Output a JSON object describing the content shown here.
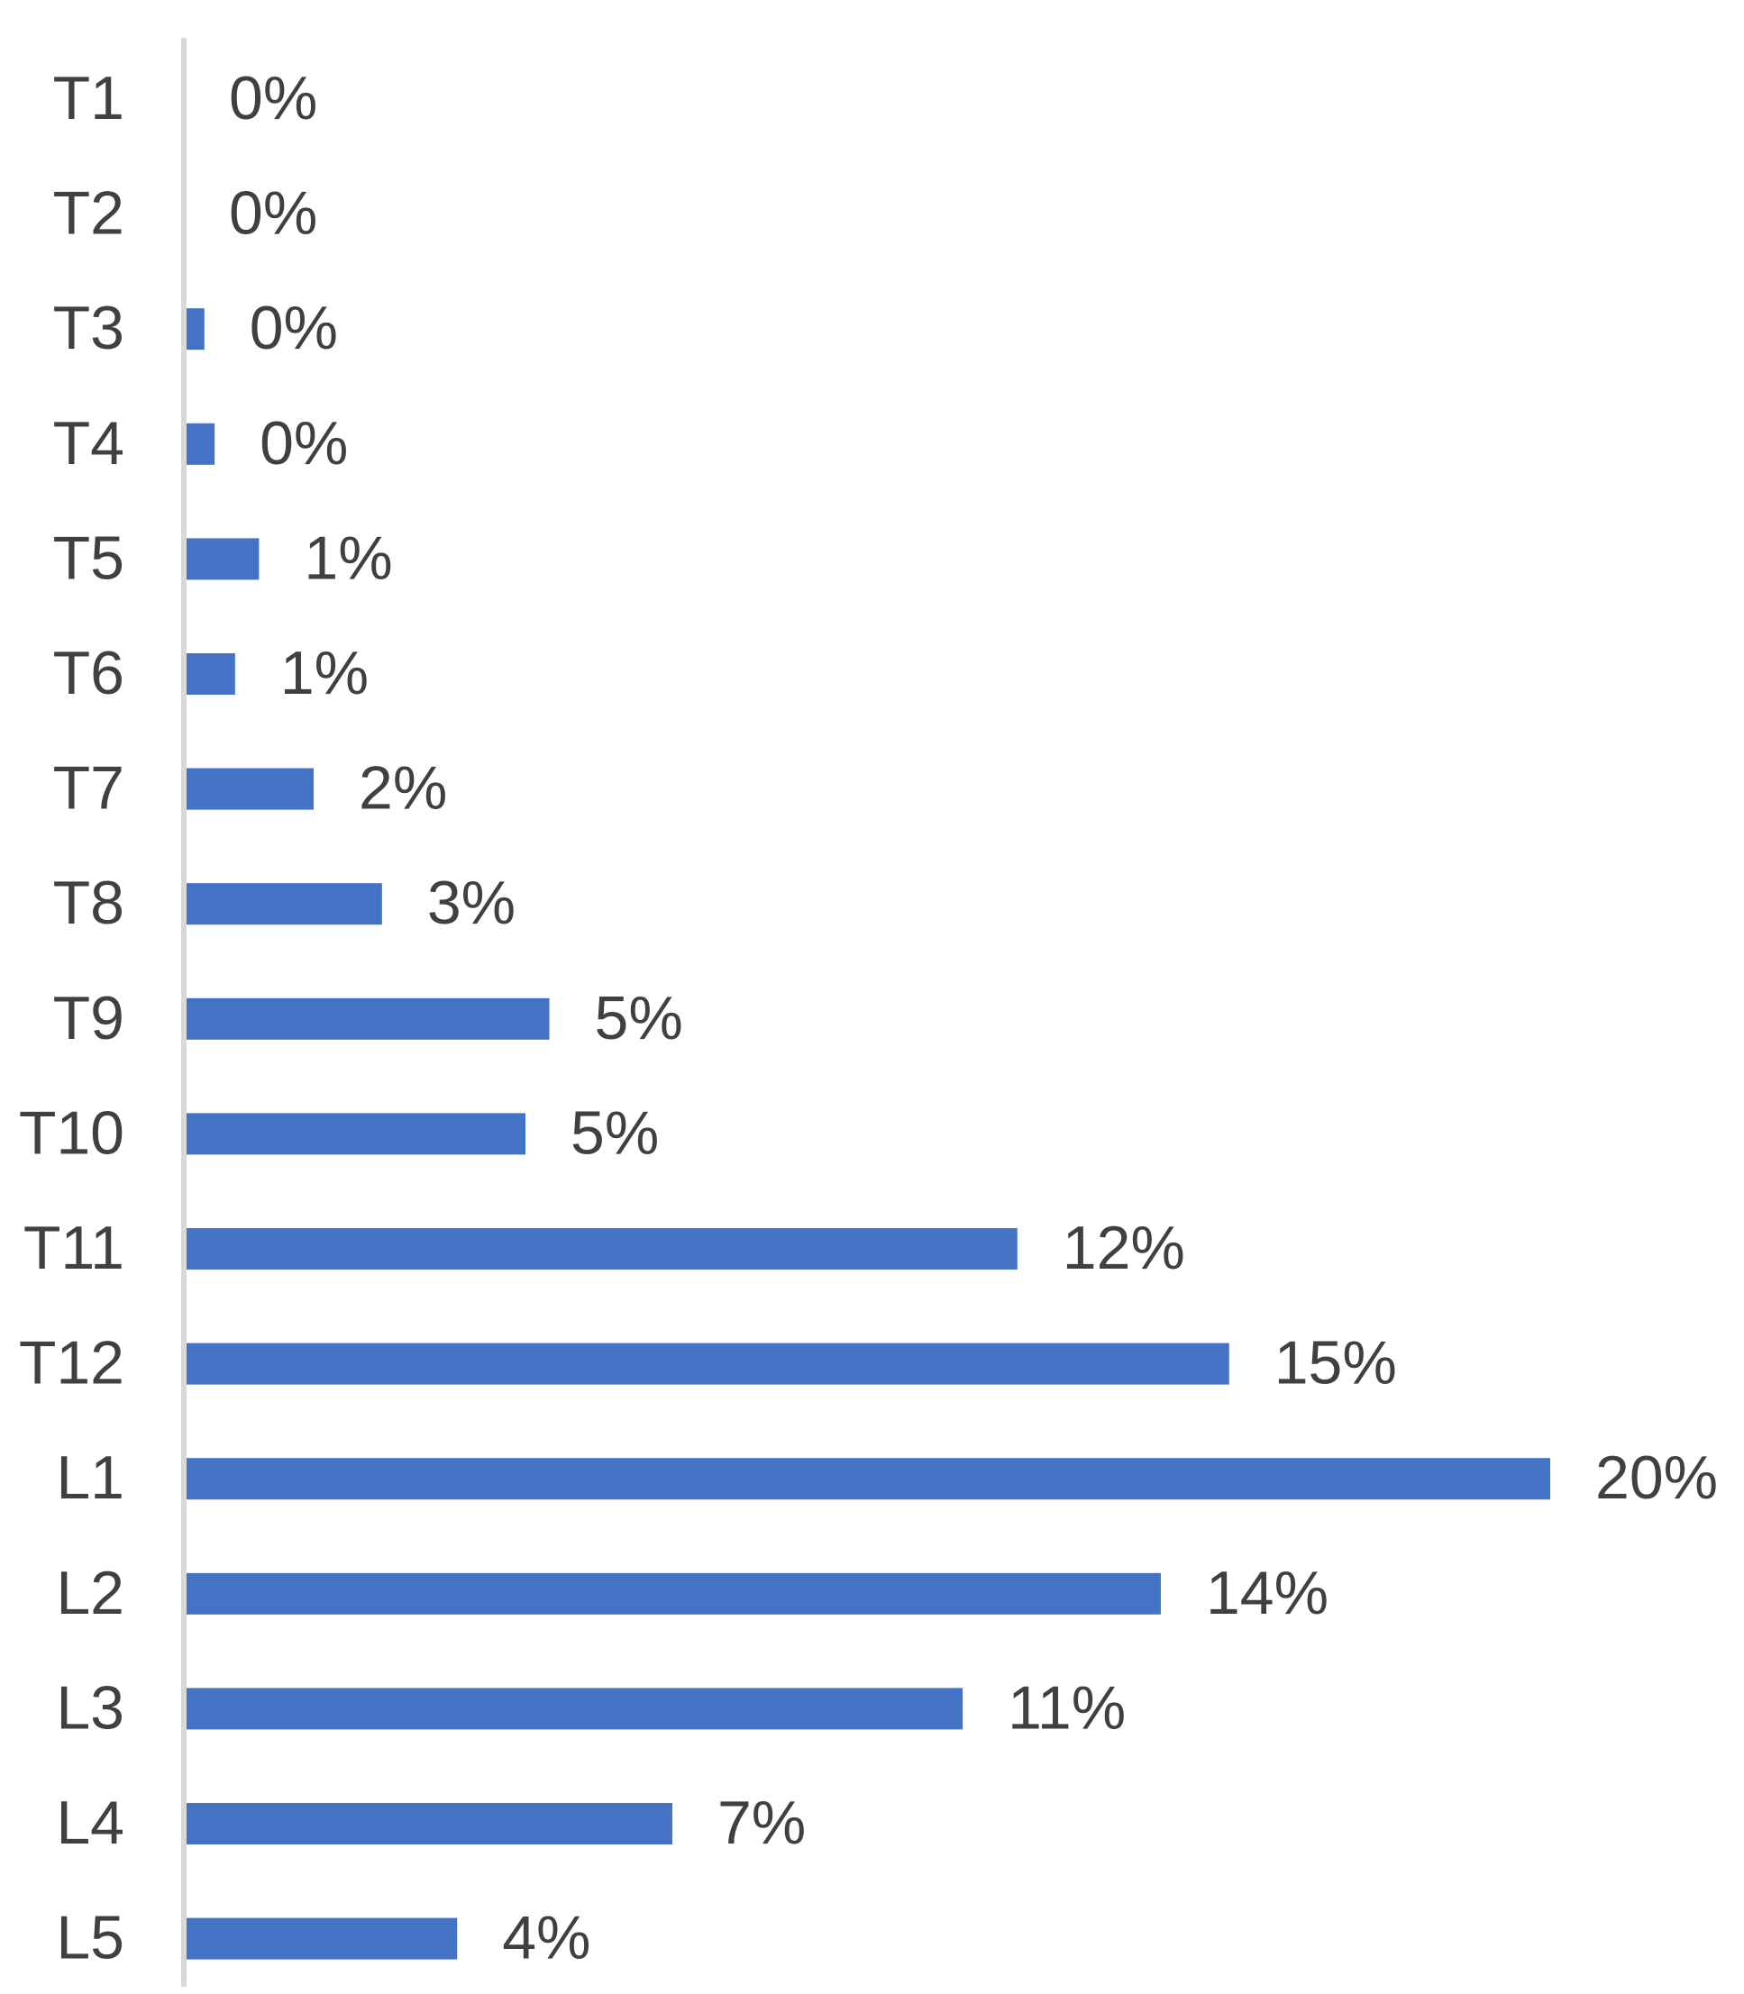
{
  "colors": {
    "bar": "#4472C4",
    "text": "#404040",
    "axis": "#D9D9D9",
    "background": "#FFFFFF"
  },
  "chart_data": {
    "type": "bar",
    "orientation": "horizontal",
    "categories": [
      "T1",
      "T2",
      "T3",
      "T4",
      "T5",
      "T6",
      "T7",
      "T8",
      "T9",
      "T10",
      "T11",
      "T12",
      "L1",
      "L2",
      "L3",
      "L4",
      "L5"
    ],
    "values": [
      0.0,
      0.0,
      0.3,
      0.45,
      1.1,
      0.75,
      1.9,
      2.9,
      5.35,
      5.0,
      12.2,
      15.3,
      20.0,
      14.3,
      11.4,
      7.15,
      4.0
    ],
    "data_labels": [
      "0%",
      "0%",
      "0%",
      "0%",
      "1%",
      "1%",
      "2%",
      "3%",
      "5%",
      "5%",
      "12%",
      "15%",
      "20%",
      "14%",
      "11%",
      "7%",
      "4%"
    ],
    "value_unit": "%",
    "xlim": [
      0,
      20
    ],
    "title": "",
    "xlabel": "",
    "ylabel": "",
    "grid": false,
    "legend": "none"
  }
}
